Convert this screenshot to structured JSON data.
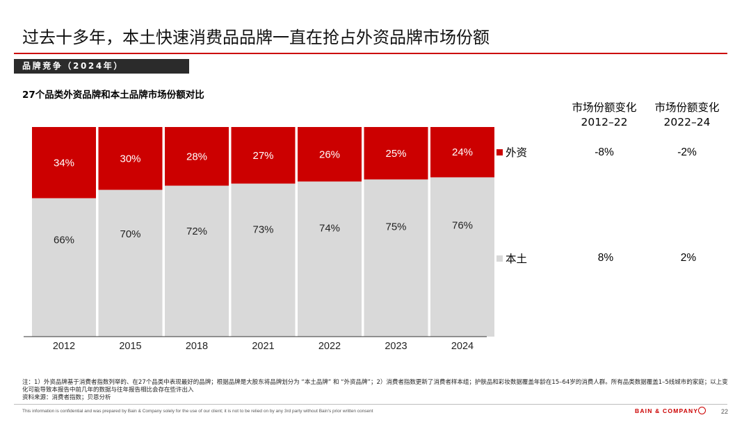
{
  "page": {
    "title": "过去十多年，本土快速消费品品牌一直在抢占外资品牌市场份额",
    "section_label": "品牌竞争（2024年）",
    "notes": "注：1）外资品牌基于消费者指数列举的、在27个品类中表现最好的品牌；根据品牌是大股东将品牌划分为 “本土品牌” 和 “外资品牌”；2）消费者指数更新了消费者样本组；护肤品和彩妆数据覆盖年龄在15–64岁的消费人群。所有品类数据覆盖1–5线城市的家庭；以上变化可能导致本报告中前几年的数据与往年报告相比会存在些许出入",
    "source": "资料来源：消费者指数；贝恩分析",
    "footer_disclaimer": "This information is confidential and was prepared by Bain & Company solely for the use of our client; it is not to be relied on by any 3rd party without Bain's prior written consent",
    "brand": "BAIN & COMPANY",
    "page_number": "22"
  },
  "table": {
    "headers": [
      "市场份额变化\n2012–22",
      "市场份额变化\n2022–24"
    ],
    "rows": [
      {
        "series": "外资",
        "values": [
          "-8%",
          "-2%"
        ]
      },
      {
        "series": "本土",
        "values": [
          "8%",
          "2%"
        ]
      }
    ]
  },
  "colors": {
    "foreign": "#cc0000",
    "local": "#d9d9d9",
    "accent": "#cc0000",
    "band": "#2b2b2b"
  },
  "chart_data": {
    "type": "bar",
    "stacked": true,
    "title": "27个品类外资品牌和本土品牌市场份额对比",
    "categories": [
      "2012",
      "2015",
      "2018",
      "2021",
      "2022",
      "2023",
      "2024"
    ],
    "series": [
      {
        "name": "外资",
        "values": [
          34,
          30,
          28,
          27,
          26,
          25,
          24
        ],
        "labels": [
          "34%",
          "30%",
          "28%",
          "27%",
          "26%",
          "25%",
          "24%"
        ]
      },
      {
        "name": "本土",
        "values": [
          66,
          70,
          72,
          73,
          74,
          75,
          76
        ],
        "labels": [
          "66%",
          "70%",
          "72%",
          "73%",
          "74%",
          "75%",
          "76%"
        ]
      }
    ],
    "ylim": [
      0,
      100
    ],
    "grid": false,
    "legend": "right"
  }
}
